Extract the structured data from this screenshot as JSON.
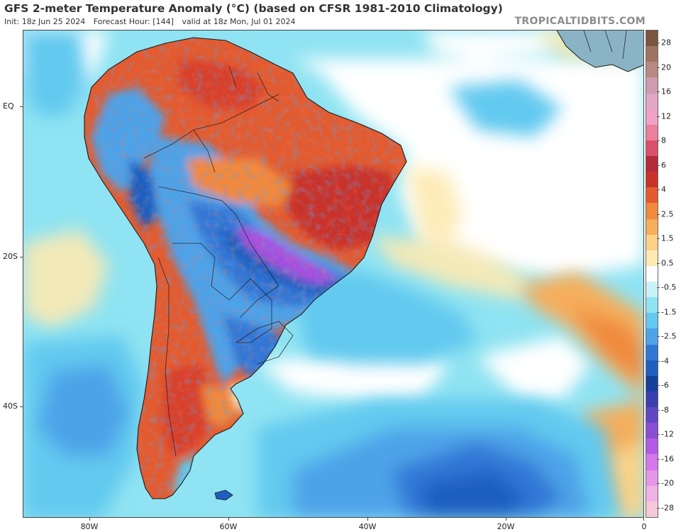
{
  "header": {
    "title": "GFS 2-meter Temperature Anomaly (°C) (based on CFSR 1981-2010 Climatology)",
    "init": "Init: 18z Jun 25 2024",
    "forecast_hour": "Forecast Hour: [144]",
    "valid": "valid at 18z Mon, Jul 01 2024",
    "watermark": "TROPICALTIDBITS.COM"
  },
  "map": {
    "region": "South America and South Atlantic",
    "lat_labels": [
      "EQ",
      "20S",
      "40S"
    ],
    "lon_labels": [
      "80W",
      "60W",
      "40W",
      "20W",
      "0"
    ],
    "colors": {
      "ocean_mild_cold": "#8fe3f2",
      "cold": "#4ea3e8",
      "very_cold": "#1f5fc0",
      "extreme_cold": "#a64fe0",
      "warm": "#f08a3c",
      "hot": "#d9402b",
      "neutral": "#ffffff",
      "slightly_warm": "#fbe3a4",
      "borders": "#1a1a1a"
    }
  },
  "colorbar": {
    "labels": [
      "28",
      "20",
      "16",
      "12",
      "8",
      "6",
      "4",
      "2.5",
      "1.5",
      "0.5",
      "-0.5",
      "-1.5",
      "-2.5",
      "-4",
      "-6",
      "-8",
      "-12",
      "-16",
      "-20",
      "-28"
    ],
    "colors": [
      "#7a5540",
      "#9e7560",
      "#b98882",
      "#cf9bb0",
      "#e2a6c9",
      "#f1a0c6",
      "#ec7f9c",
      "#d9506a",
      "#b32a3a",
      "#c9322b",
      "#e35b2e",
      "#f08a3c",
      "#f5ae5b",
      "#fbd287",
      "#fdeab2",
      "#ffffff",
      "#c9f3f8",
      "#8fe3f2",
      "#62c9ef",
      "#4ea3e8",
      "#3377d6",
      "#1f5fc0",
      "#17409c",
      "#3b3fb0",
      "#6046c4",
      "#8a4dd6",
      "#b35ae6",
      "#d777ec",
      "#e696e6",
      "#efb2e6",
      "#f5c8d8"
    ]
  }
}
